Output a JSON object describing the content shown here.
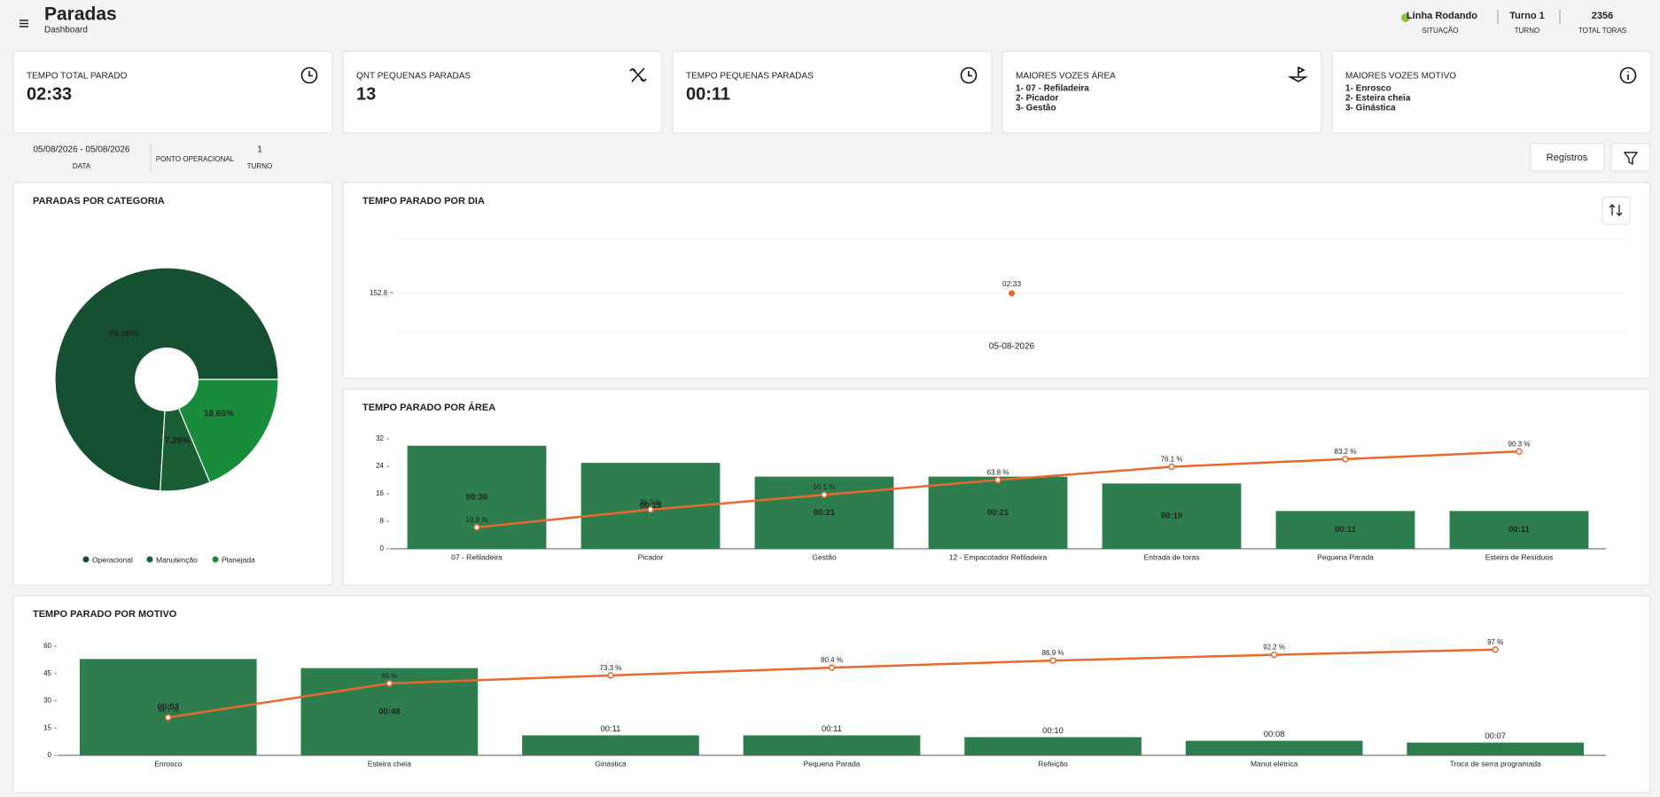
{
  "header": {
    "title": "Paradas",
    "subtitle": "Dashboard"
  },
  "status": [
    {
      "value": "Linha Rodando",
      "label": "SITUAÇÃO"
    },
    {
      "value": "Turno 1",
      "label": "TURNO"
    },
    {
      "value": "2356",
      "label": "TOTAL TORAS"
    }
  ],
  "kpis": [
    {
      "label": "TEMPO TOTAL PARADO",
      "value": "02:33"
    },
    {
      "label": "QNT PEQUENAS PARADAS",
      "value": "13"
    },
    {
      "label": "TEMPO PEQUENAS PARADAS",
      "value": "00:11"
    },
    {
      "label": "MAIORES VOZES ÁREA",
      "items": [
        "1- 07 - Refiladeira",
        "2- Picador",
        "3- Gestão"
      ]
    },
    {
      "label": "MAIORES VOZES MOTIVO",
      "items": [
        "1- Enrosco",
        "2- Esteira cheia",
        "3- Ginástica"
      ]
    }
  ],
  "filters": [
    {
      "value": "05/08/2026 - 05/08/2026",
      "label": "DATA"
    },
    {
      "label": "PONTO OPERACIONAL"
    },
    {
      "value": "1",
      "label": "TURNO"
    }
  ],
  "buttons": [
    "Registros"
  ],
  "chart_data": [
    {
      "type": "pie",
      "title": "PARADAS POR CATEGORIA",
      "categories": [
        "Operacional",
        "Manutenção",
        "Planejada"
      ],
      "values": [
        74.08,
        7.26,
        18.65
      ],
      "value_labels": [
        "74.08%",
        "7.26%",
        "18.65%"
      ],
      "colors": [
        "#155130",
        "#1a5e36",
        "#198c3c"
      ],
      "donut": true
    },
    {
      "type": "line",
      "title": "TEMPO PARADO POR DIA",
      "x": [
        "05-08-2026"
      ],
      "values": [
        153
      ],
      "value_labels": [
        "02:33"
      ],
      "color": "#e8692b",
      "ylim": [
        0,
        369
      ],
      "yticks": [
        {
          "value": 152.8,
          "label": "152.8 ~"
        }
      ],
      "grid": true
    },
    {
      "type": "bar",
      "title": "TEMPO PARADO POR ÁREA",
      "categories": [
        "07 - Refiladeira",
        "Picador",
        "Gestão",
        "12 - Empacotador Refiladeira",
        "Entrada de toras",
        "Pequena Parada",
        "Esteira de Resíduos"
      ],
      "ylim": [
        0,
        32
      ],
      "yticks": [
        0,
        8,
        16,
        24,
        32
      ],
      "y2lim": [
        0,
        102
      ],
      "series": [
        {
          "type": "bar",
          "color": "#2e7d4f",
          "values": [
            30,
            25,
            21,
            21,
            19,
            11,
            11
          ],
          "value_labels": [
            "00:30",
            "00:25",
            "00:21",
            "00:21",
            "00:19",
            "00:11",
            "00:11"
          ]
        },
        {
          "type": "line",
          "axis": "y2",
          "color": "#e8692b",
          "values": [
            19.9,
            36.3,
            50.1,
            63.8,
            76.1,
            83.2,
            90.3
          ],
          "value_labels": [
            "19.9 %",
            "36.3 %",
            "50.1 %",
            "63.8 %",
            "76.1 %",
            "83.2 %",
            "90.3 %"
          ]
        }
      ]
    },
    {
      "type": "bar",
      "title": "TEMPO PARADO POR MOTIVO",
      "categories": [
        "Enrosco",
        "Esteira cheia",
        "Ginástica",
        "Pequena Parada",
        "Refeição",
        "Manut elétrica",
        "Troca de serra programada"
      ],
      "ylim": [
        0,
        60
      ],
      "yticks": [
        0,
        15,
        30,
        45,
        60
      ],
      "y2lim": [
        0,
        100
      ],
      "series": [
        {
          "type": "bar",
          "color": "#2e7d4f",
          "values": [
            53,
            48,
            11,
            11,
            10,
            8,
            7
          ],
          "value_labels": [
            "00:53",
            "00:48",
            "00:11",
            "00:11",
            "00:10",
            "00:08",
            "00:07"
          ]
        },
        {
          "type": "line",
          "axis": "y2",
          "color": "#e8692b",
          "values": [
            34.7,
            66,
            73.3,
            80.4,
            86.9,
            92.2,
            97
          ],
          "value_labels": [
            "34.7 %",
            "66 %",
            "73.3 %",
            "80.4 %",
            "86.9 %",
            "92.2 %",
            "97 %"
          ]
        }
      ]
    }
  ]
}
